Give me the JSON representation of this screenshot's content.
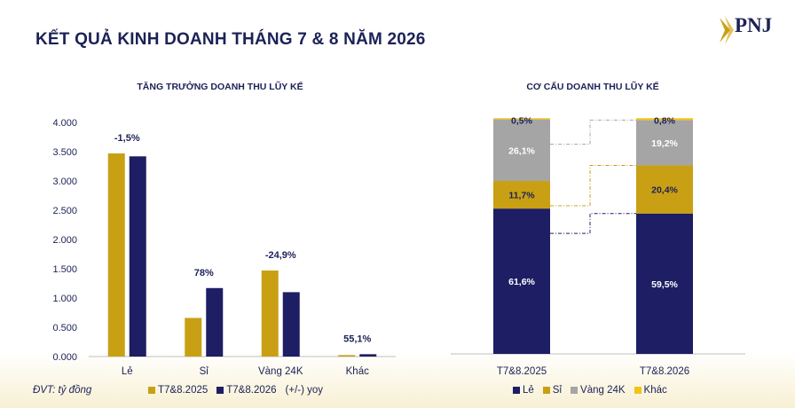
{
  "page": {
    "title": "KẾT QUẢ KINH DOANH THÁNG 7 & 8 NĂM 2026",
    "logo_text": "PNJ",
    "unit_note": "ĐVT: tỷ đồng"
  },
  "colors": {
    "gold": "#c9a013",
    "navy": "#1d1e63",
    "gray": "#a5a5a5",
    "yellow": "#f2c318",
    "title": "#1c2156"
  },
  "chart_data": [
    {
      "type": "bar",
      "title": "TĂNG TRƯỞNG DOANH THU LŨY KẾ",
      "categories": [
        "Lẻ",
        "Sỉ",
        "Vàng 24K",
        "Khác"
      ],
      "series": [
        {
          "name": "T7&8.2025",
          "values": [
            3470,
            660,
            1470,
            25
          ]
        },
        {
          "name": "T7&8.2026",
          "values": [
            3420,
            1170,
            1100,
            40
          ]
        }
      ],
      "annotations": [
        "-1,5%",
        "78%",
        "-24,9%",
        "55,1%"
      ],
      "annotation_legend": "(+/-) yoy",
      "yticks": [
        "4.000",
        "3.500",
        "3.000",
        "2.500",
        "2.000",
        "1.500",
        "1.000",
        "0.500",
        "0.000"
      ],
      "ylim": [
        0,
        4000
      ],
      "grid": false,
      "legend_position": "bottom"
    },
    {
      "type": "bar",
      "stacked": true,
      "title": "CƠ CẤU DOANH THU LŨY KẾ",
      "categories": [
        "T7&8.2025",
        "T7&8.2026"
      ],
      "series": [
        {
          "name": "Lẻ",
          "values": [
            61.6,
            59.5
          ]
        },
        {
          "name": "Sỉ",
          "values": [
            11.7,
            20.4
          ]
        },
        {
          "name": "Vàng 24K",
          "values": [
            26.1,
            19.2
          ]
        },
        {
          "name": "Khác",
          "values": [
            0.5,
            0.8
          ]
        }
      ],
      "labels": [
        [
          "61,6%",
          "59,5%"
        ],
        [
          "11,7%",
          "20,4%"
        ],
        [
          "26,1%",
          "19,2%"
        ],
        [
          "0,5%",
          "0,8%"
        ]
      ],
      "ylim": [
        0,
        100
      ],
      "legend_position": "bottom"
    }
  ]
}
